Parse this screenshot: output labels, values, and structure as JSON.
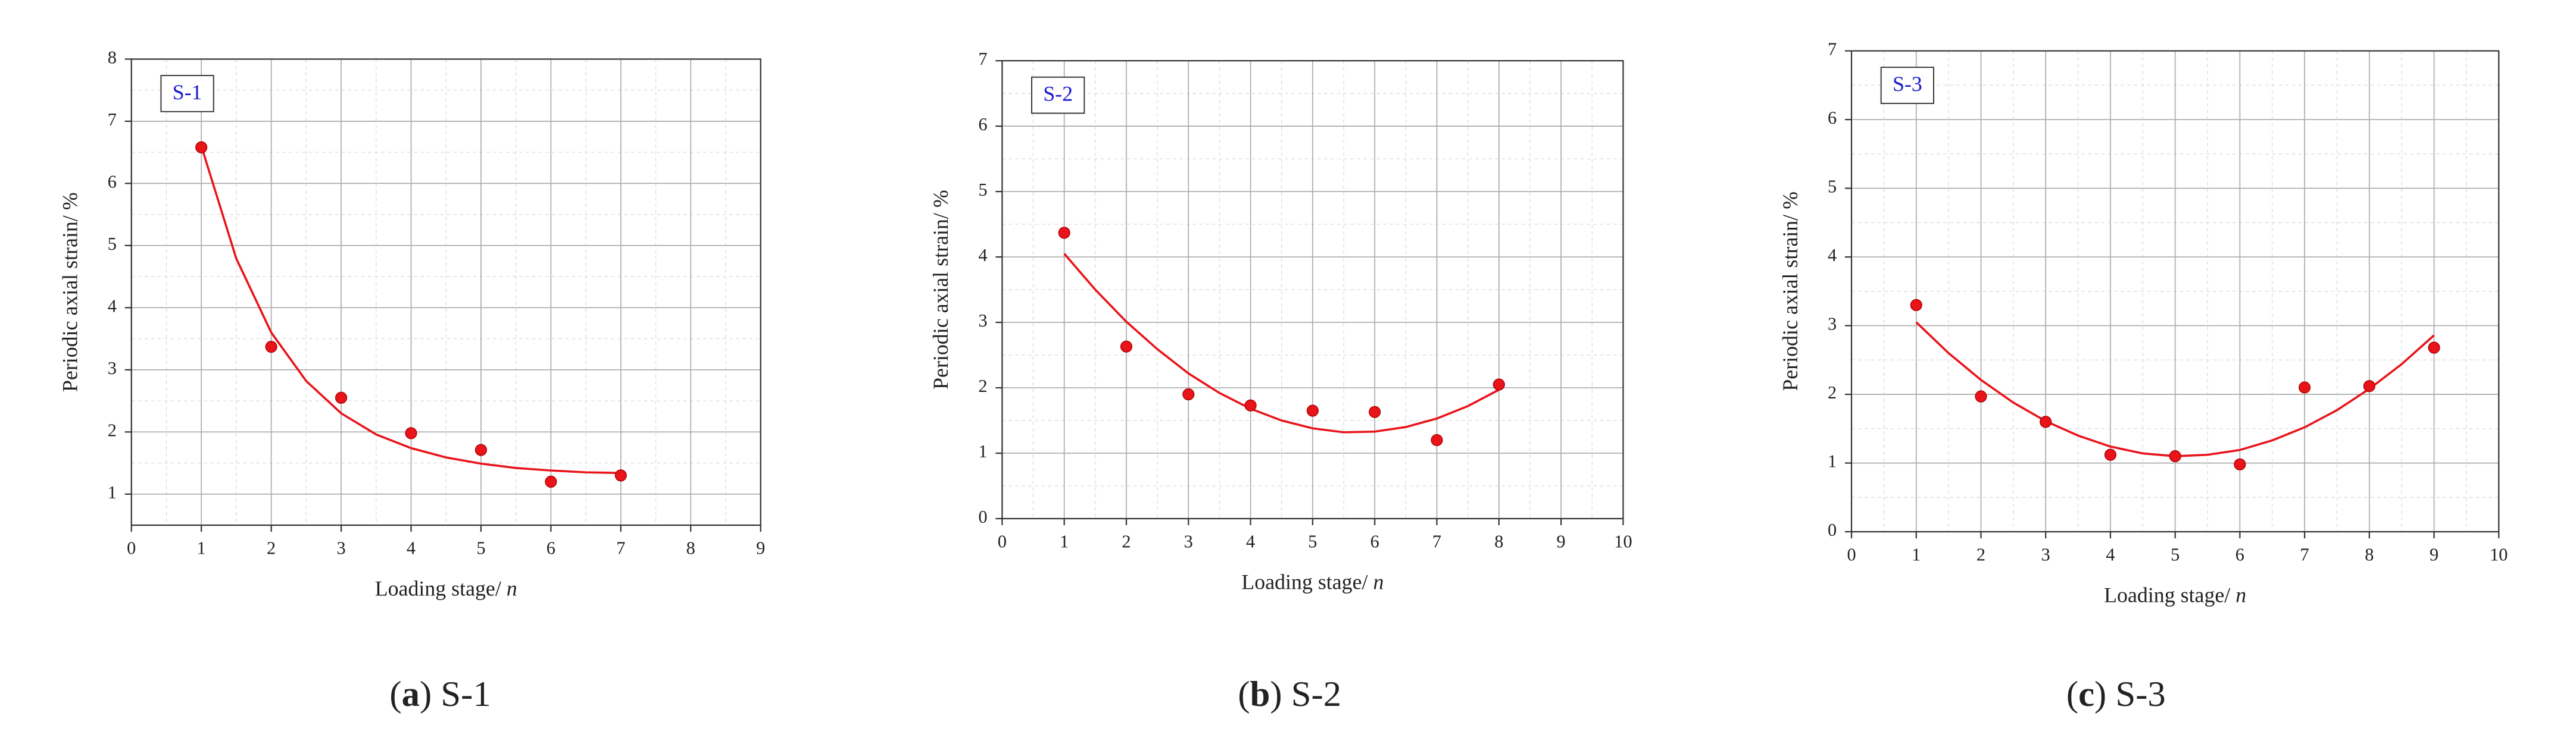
{
  "chart_data": [
    {
      "type": "scatter",
      "series": [
        {
          "name": "S-1",
          "color": "#e8141a",
          "x": [
            1,
            2,
            3,
            4,
            5,
            6,
            7
          ],
          "values": [
            6.58,
            3.37,
            2.55,
            1.98,
            1.71,
            1.2,
            1.3
          ]
        }
      ],
      "fit": {
        "color": "#e8141a",
        "x": [
          1,
          1.5,
          2,
          2.5,
          3,
          3.5,
          4,
          4.5,
          5,
          5.5,
          6,
          6.5,
          7
        ],
        "values": [
          6.6,
          4.79,
          3.6,
          2.82,
          2.3,
          1.96,
          1.74,
          1.59,
          1.49,
          1.42,
          1.38,
          1.35,
          1.34
        ]
      },
      "xlim": [
        0,
        9
      ],
      "xticks": [
        0,
        1,
        2,
        3,
        4,
        5,
        6,
        7,
        8,
        9
      ],
      "ylim": [
        0.5,
        8
      ],
      "yticks": [
        1,
        2,
        3,
        4,
        5,
        6,
        7,
        8
      ],
      "x_label": "Loading stage/ ",
      "x_label_var": "n",
      "y_label": "Periodic axial strain/ %",
      "grid": true,
      "caption": {
        "letter": "a",
        "text": "S-1"
      }
    },
    {
      "type": "scatter",
      "series": [
        {
          "name": "S-2",
          "color": "#e8141a",
          "x": [
            1,
            2,
            3,
            4,
            5,
            6,
            7,
            8
          ],
          "values": [
            4.37,
            2.63,
            1.9,
            1.73,
            1.65,
            1.63,
            1.2,
            2.05
          ]
        }
      ],
      "fit": {
        "color": "#e8141a",
        "x": [
          1,
          1.5,
          2,
          2.5,
          3,
          3.5,
          4,
          4.5,
          5,
          5.5,
          6,
          6.5,
          7,
          7.5,
          8
        ],
        "values": [
          4.05,
          3.5,
          3.01,
          2.59,
          2.22,
          1.92,
          1.68,
          1.5,
          1.38,
          1.32,
          1.33,
          1.4,
          1.53,
          1.72,
          1.97
        ]
      },
      "xlim": [
        0,
        10
      ],
      "xticks": [
        0,
        1,
        2,
        3,
        4,
        5,
        6,
        7,
        8,
        9,
        10
      ],
      "ylim": [
        0,
        7
      ],
      "yticks": [
        0,
        1,
        2,
        3,
        4,
        5,
        6,
        7
      ],
      "x_label": "Loading stage/ ",
      "x_label_var": "n",
      "y_label": "Periodic axial strain/ %",
      "grid": true,
      "caption": {
        "letter": "b",
        "text": "S-2"
      }
    },
    {
      "type": "scatter",
      "series": [
        {
          "name": "S-3",
          "color": "#e8141a",
          "x": [
            1,
            2,
            3,
            4,
            5,
            6,
            7,
            8,
            9
          ],
          "values": [
            3.3,
            1.97,
            1.6,
            1.12,
            1.1,
            0.98,
            2.1,
            2.12,
            2.68
          ]
        }
      ],
      "fit": {
        "color": "#e8141a",
        "x": [
          1,
          1.5,
          2,
          2.5,
          3,
          3.5,
          4,
          4.5,
          5,
          5.5,
          6,
          6.5,
          7,
          7.5,
          8,
          8.5,
          9
        ],
        "values": [
          3.05,
          2.6,
          2.21,
          1.88,
          1.61,
          1.4,
          1.24,
          1.14,
          1.1,
          1.12,
          1.19,
          1.33,
          1.52,
          1.77,
          2.08,
          2.44,
          2.86
        ]
      },
      "xlim": [
        0,
        10
      ],
      "xticks": [
        0,
        1,
        2,
        3,
        4,
        5,
        6,
        7,
        8,
        9,
        10
      ],
      "ylim": [
        0,
        7
      ],
      "yticks": [
        0,
        1,
        2,
        3,
        4,
        5,
        6,
        7
      ],
      "x_label": "Loading stage/ ",
      "x_label_var": "n",
      "y_label": "Periodic axial strain/ %",
      "grid": true,
      "caption": {
        "letter": "c",
        "text": "S-3"
      }
    }
  ]
}
